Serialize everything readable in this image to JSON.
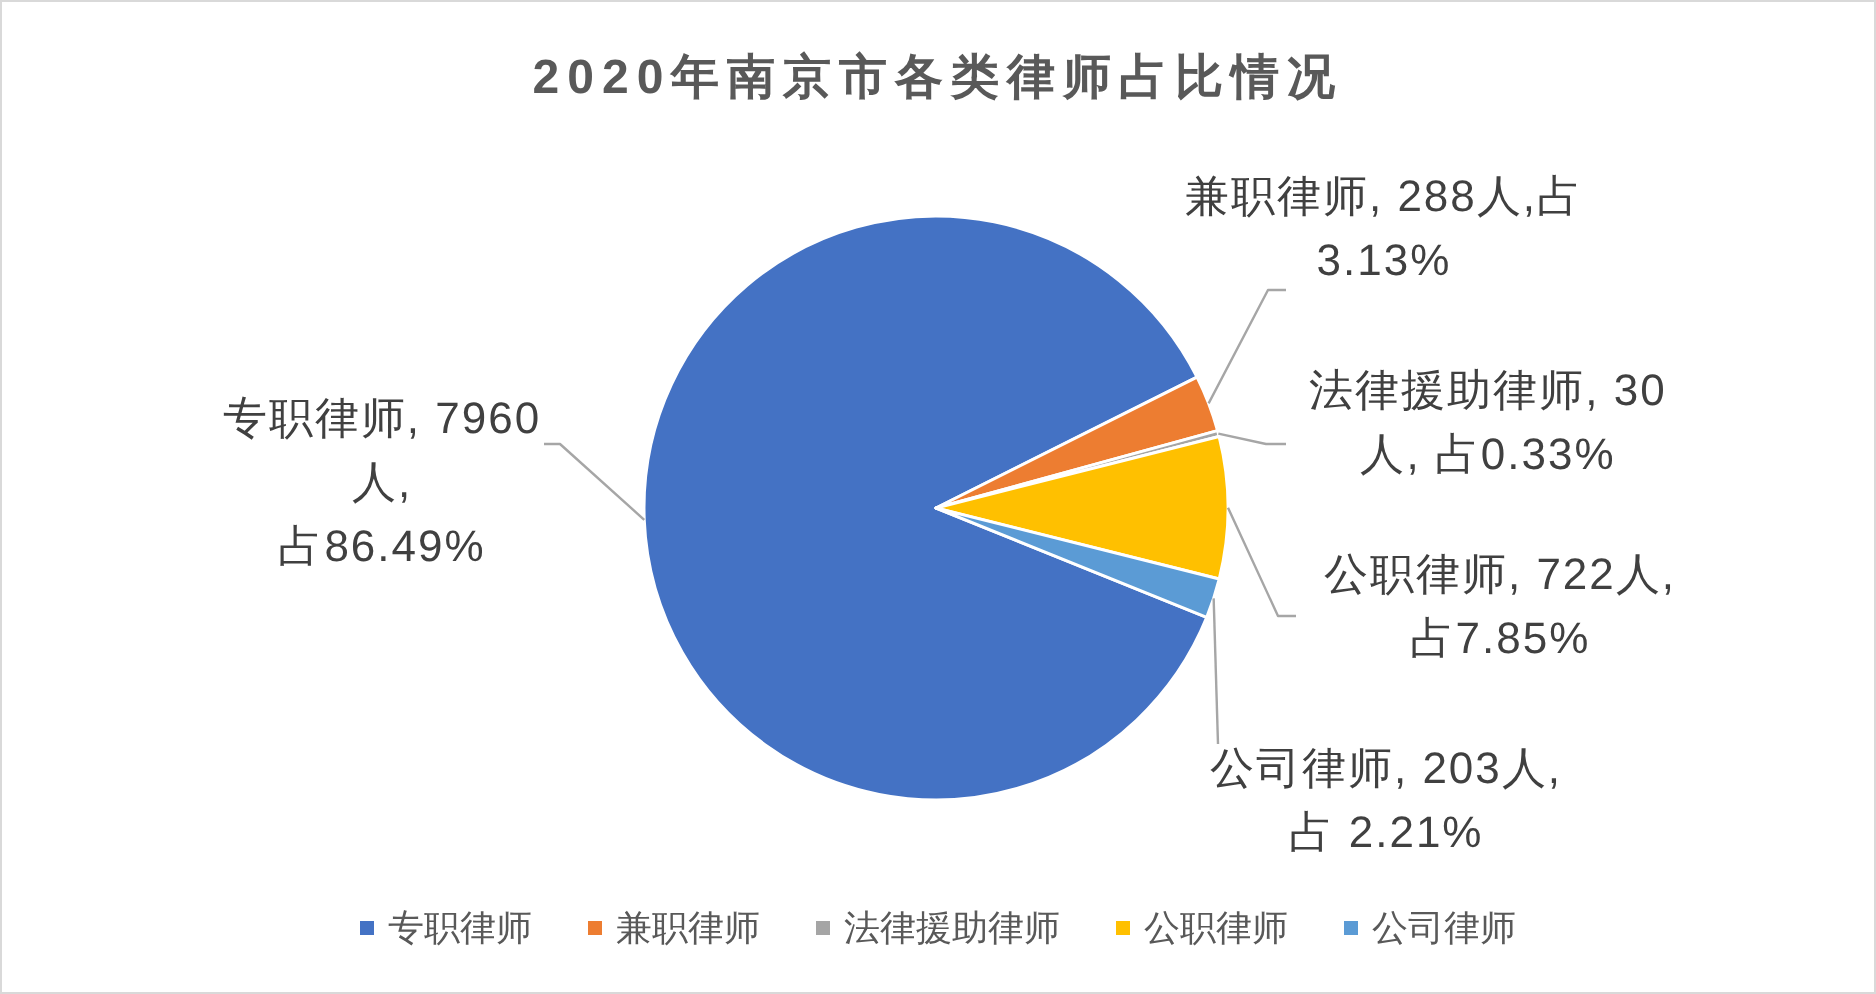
{
  "chart_data": {
    "type": "pie",
    "title": "2020年南京市各类律师占比情况",
    "categories": [
      "专职律师",
      "兼职律师",
      "法律援助律师",
      "公职律师",
      "公司律师"
    ],
    "values": [
      7960,
      288,
      30,
      722,
      203
    ],
    "colors": [
      "#4472c4",
      "#ed7d31",
      "#a5a5a5",
      "#ffc000",
      "#5b9bd5"
    ],
    "value_labels": [
      "专职律师, 7960\n人,\n占86.49%",
      "兼职律师, 288人,占\n3.13%",
      "法律援助律师, 30\n人, 占0.33%",
      "公职律师, 722人,\n占7.85%",
      "公司律师, 203人,\n占 2.21%"
    ],
    "legend": "bottom"
  }
}
